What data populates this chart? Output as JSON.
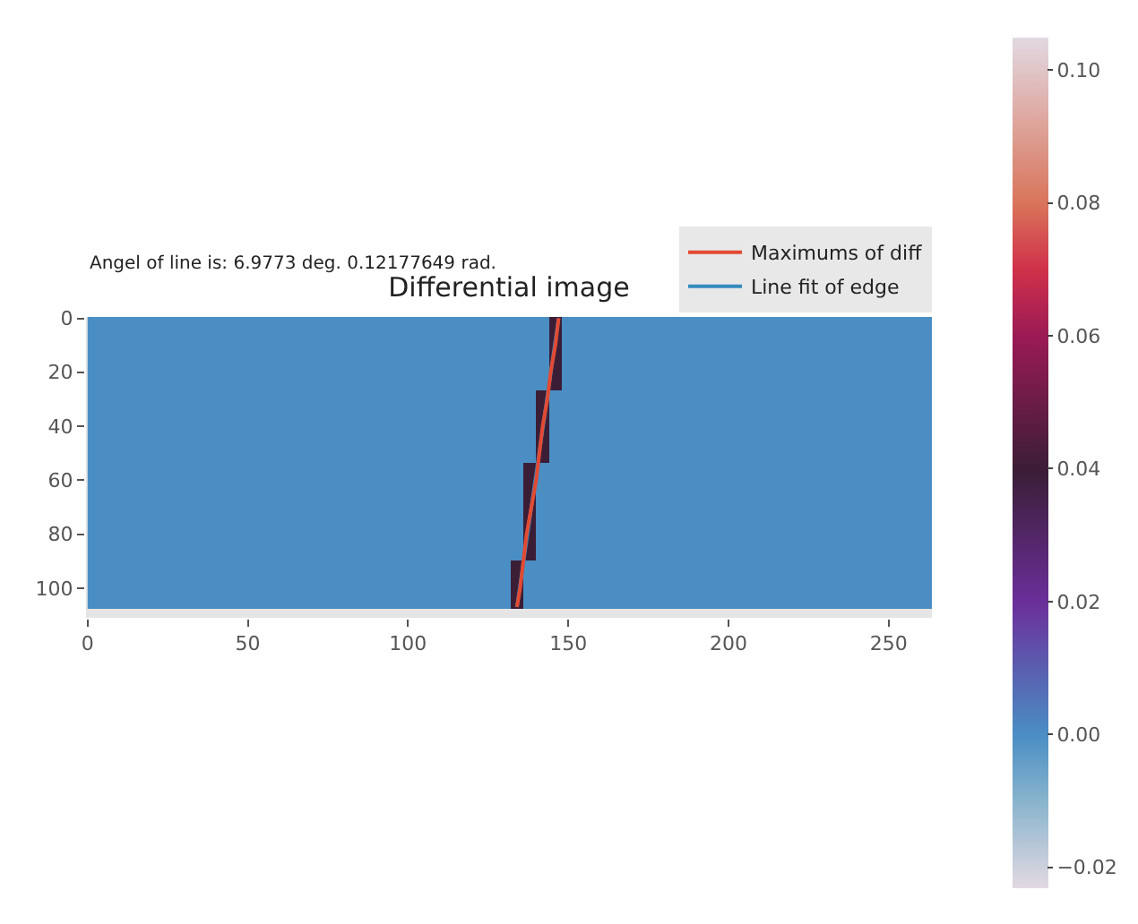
{
  "chart_data": {
    "type": "heatmap",
    "title": "Differential image",
    "annotations": [
      "Angel of line is: 6.9773 deg. 0.12177649 rad."
    ],
    "x": [
      2,
      6,
      10,
      14,
      18,
      22,
      26,
      30,
      34,
      38,
      42,
      46,
      50,
      54,
      58,
      62,
      66,
      70,
      74,
      78,
      82,
      86,
      90,
      94,
      98,
      102,
      106,
      110,
      114,
      118,
      122,
      126,
      130,
      134,
      138,
      142,
      146,
      150,
      154,
      158,
      162,
      166,
      170,
      174,
      178,
      182,
      186,
      190,
      194,
      198,
      202,
      206,
      210,
      214,
      218,
      222,
      226,
      230,
      234,
      238,
      242,
      246,
      250,
      254,
      258,
      262
    ],
    "y": [
      4,
      13,
      22,
      31,
      40,
      49,
      58,
      67,
      76,
      85,
      94,
      103
    ],
    "cells": [
      [
        0,
        0,
        0,
        0,
        0,
        0,
        0,
        0,
        0,
        0,
        0,
        0,
        0,
        0,
        0,
        0,
        0,
        0,
        0,
        0,
        0,
        0,
        0,
        0,
        0,
        0,
        0,
        0,
        0,
        0,
        0,
        0,
        0,
        0,
        0,
        0,
        0.04,
        0,
        0,
        0,
        0,
        0,
        0,
        0,
        0,
        0,
        0,
        0,
        0,
        0,
        0,
        0,
        0,
        0,
        0,
        0,
        0,
        0,
        0,
        0,
        0,
        0,
        0,
        0,
        0,
        0
      ],
      [
        0,
        0,
        0,
        0,
        0,
        0,
        0,
        0,
        0,
        0,
        0,
        0,
        0,
        0,
        0,
        0,
        0,
        0,
        0,
        0,
        0,
        0,
        0,
        0,
        0,
        0,
        0,
        0,
        0,
        0,
        0,
        0,
        0,
        0,
        0,
        0,
        0.04,
        0,
        0,
        0,
        0,
        0,
        0,
        0,
        0,
        0,
        0,
        0,
        0,
        0,
        0,
        0,
        0,
        0,
        0,
        0,
        0,
        0,
        0,
        0,
        0,
        0,
        0,
        0,
        0,
        0
      ],
      [
        0,
        0,
        0,
        0,
        0,
        0,
        0,
        0,
        0,
        0,
        0,
        0,
        0,
        0,
        0,
        0,
        0,
        0,
        0,
        0,
        0,
        0,
        0,
        0,
        0,
        0,
        0,
        0,
        0,
        0,
        0,
        0,
        0,
        0,
        0,
        0,
        0.04,
        0,
        0,
        0,
        0,
        0,
        0,
        0,
        0,
        0,
        0,
        0,
        0,
        0,
        0,
        0,
        0,
        0,
        0,
        0,
        0,
        0,
        0,
        0,
        0,
        0,
        0,
        0,
        0,
        0
      ],
      [
        0,
        0,
        0,
        0,
        0,
        0,
        0,
        0,
        0,
        0,
        0,
        0,
        0,
        0,
        0,
        0,
        0,
        0,
        0,
        0,
        0,
        0,
        0,
        0,
        0,
        0,
        0,
        0,
        0,
        0,
        0,
        0,
        0,
        0,
        0,
        0.04,
        0,
        0,
        0,
        0,
        0,
        0,
        0,
        0,
        0,
        0,
        0,
        0,
        0,
        0,
        0,
        0,
        0,
        0,
        0,
        0,
        0,
        0,
        0,
        0,
        0,
        0,
        0,
        0,
        0,
        0
      ],
      [
        0,
        0,
        0,
        0,
        0,
        0,
        0,
        0,
        0,
        0,
        0,
        0,
        0,
        0,
        0,
        0,
        0,
        0,
        0,
        0,
        0,
        0,
        0,
        0,
        0,
        0,
        0,
        0,
        0,
        0,
        0,
        0,
        0,
        0,
        0,
        0.04,
        0,
        0,
        0,
        0,
        0,
        0,
        0,
        0,
        0,
        0,
        0,
        0,
        0,
        0,
        0,
        0,
        0,
        0,
        0,
        0,
        0,
        0,
        0,
        0,
        0,
        0,
        0,
        0,
        0,
        0
      ],
      [
        0,
        0,
        0,
        0,
        0,
        0,
        0,
        0,
        0,
        0,
        0,
        0,
        0,
        0,
        0,
        0,
        0,
        0,
        0,
        0,
        0,
        0,
        0,
        0,
        0,
        0,
        0,
        0,
        0,
        0,
        0,
        0,
        0,
        0,
        0,
        0.04,
        0,
        0,
        0,
        0,
        0,
        0,
        0,
        0,
        0,
        0,
        0,
        0,
        0,
        0,
        0,
        0,
        0,
        0,
        0,
        0,
        0,
        0,
        0,
        0,
        0,
        0,
        0,
        0,
        0,
        0
      ],
      [
        0,
        0,
        0,
        0,
        0,
        0,
        0,
        0,
        0,
        0,
        0,
        0,
        0,
        0,
        0,
        0,
        0,
        0,
        0,
        0,
        0,
        0,
        0,
        0,
        0,
        0,
        0,
        0,
        0,
        0,
        0,
        0,
        0,
        0,
        0.04,
        0,
        0,
        0,
        0,
        0,
        0,
        0,
        0,
        0,
        0,
        0,
        0,
        0,
        0,
        0,
        0,
        0,
        0,
        0,
        0,
        0,
        0,
        0,
        0,
        0,
        0,
        0,
        0,
        0,
        0,
        0
      ],
      [
        0,
        0,
        0,
        0,
        0,
        0,
        0,
        0,
        0,
        0,
        0,
        0,
        0,
        0,
        0,
        0,
        0,
        0,
        0,
        0,
        0,
        0,
        0,
        0,
        0,
        0,
        0,
        0,
        0,
        0,
        0,
        0,
        0,
        0,
        0.04,
        0,
        0,
        0,
        0,
        0,
        0,
        0,
        0,
        0,
        0,
        0,
        0,
        0,
        0,
        0,
        0,
        0,
        0,
        0,
        0,
        0,
        0,
        0,
        0,
        0,
        0,
        0,
        0,
        0,
        0,
        0
      ],
      [
        0,
        0,
        0,
        0,
        0,
        0,
        0,
        0,
        0,
        0,
        0,
        0,
        0,
        0,
        0,
        0,
        0,
        0,
        0,
        0,
        0,
        0,
        0,
        0,
        0,
        0,
        0,
        0,
        0,
        0,
        0,
        0,
        0,
        0,
        0.04,
        0,
        0,
        0,
        0,
        0,
        0,
        0,
        0,
        0,
        0,
        0,
        0,
        0,
        0,
        0,
        0,
        0,
        0,
        0,
        0,
        0,
        0,
        0,
        0,
        0,
        0,
        0,
        0,
        0,
        0,
        0
      ],
      [
        0,
        0,
        0,
        0,
        0,
        0,
        0,
        0,
        0,
        0,
        0,
        0,
        0,
        0,
        0,
        0,
        0,
        0,
        0,
        0,
        0,
        0,
        0,
        0,
        0,
        0,
        0,
        0,
        0,
        0,
        0,
        0,
        0,
        0,
        0.04,
        0,
        0,
        0,
        0,
        0,
        0,
        0,
        0,
        0,
        0,
        0,
        0,
        0,
        0,
        0,
        0,
        0,
        0,
        0,
        0,
        0,
        0,
        0,
        0,
        0,
        0,
        0,
        0,
        0,
        0,
        0
      ],
      [
        0,
        0,
        0,
        0,
        0,
        0,
        0,
        0,
        0,
        0,
        0,
        0,
        0,
        0,
        0,
        0,
        0,
        0,
        0,
        0,
        0,
        0,
        0,
        0,
        0,
        0,
        0,
        0,
        0,
        0,
        0,
        0,
        0,
        0.04,
        0,
        0,
        0,
        0,
        0,
        0,
        0,
        0,
        0,
        0,
        0,
        0,
        0,
        0,
        0,
        0,
        0,
        0,
        0,
        0,
        0,
        0,
        0,
        0,
        0,
        0,
        0,
        0,
        0,
        0,
        0,
        0
      ],
      [
        0,
        0,
        0,
        0,
        0,
        0,
        0,
        0,
        0,
        0,
        0,
        0,
        0,
        0,
        0,
        0,
        0,
        0,
        0,
        0,
        0,
        0,
        0,
        0,
        0,
        0,
        0,
        0,
        0,
        0,
        0,
        0,
        0,
        0.04,
        0,
        0,
        0,
        0,
        0,
        0,
        0,
        0,
        0,
        0,
        0,
        0,
        0,
        0,
        0,
        0,
        0,
        0,
        0,
        0,
        0,
        0,
        0,
        0,
        0,
        0,
        0,
        0,
        0,
        0,
        0,
        0
      ]
    ],
    "clim": [
      -0.023,
      0.105
    ],
    "cticks": [
      {
        "value": -0.02,
        "label": "−0.02"
      },
      {
        "value": 0.0,
        "label": "0.00"
      },
      {
        "value": 0.02,
        "label": "0.02"
      },
      {
        "value": 0.04,
        "label": "0.04"
      },
      {
        "value": 0.06,
        "label": "0.06"
      },
      {
        "value": 0.08,
        "label": "0.08"
      },
      {
        "value": 0.1,
        "label": "0.10"
      }
    ],
    "series": [
      {
        "name": "Maximums of diff",
        "type": "line",
        "color": "#e24a33",
        "x": [
          147,
          146,
          144.5,
          143.5,
          142,
          141,
          140,
          138.5,
          137,
          136,
          135,
          134
        ],
        "values": [
          0,
          10,
          20,
          30,
          40,
          50,
          60,
          70,
          80,
          90,
          100,
          107
        ]
      },
      {
        "name": "Line fit of edge",
        "type": "line",
        "color": "#348abd",
        "x": [
          147,
          134
        ],
        "values": [
          0,
          107
        ]
      }
    ],
    "xlim": [
      -0.5,
      263.5
    ],
    "ylim": [
      111,
      -0.5
    ],
    "xticks": [
      0,
      50,
      100,
      150,
      200,
      250
    ],
    "yticks": [
      0,
      20,
      40,
      60,
      80,
      100
    ],
    "legend": "top right",
    "grid": false
  }
}
